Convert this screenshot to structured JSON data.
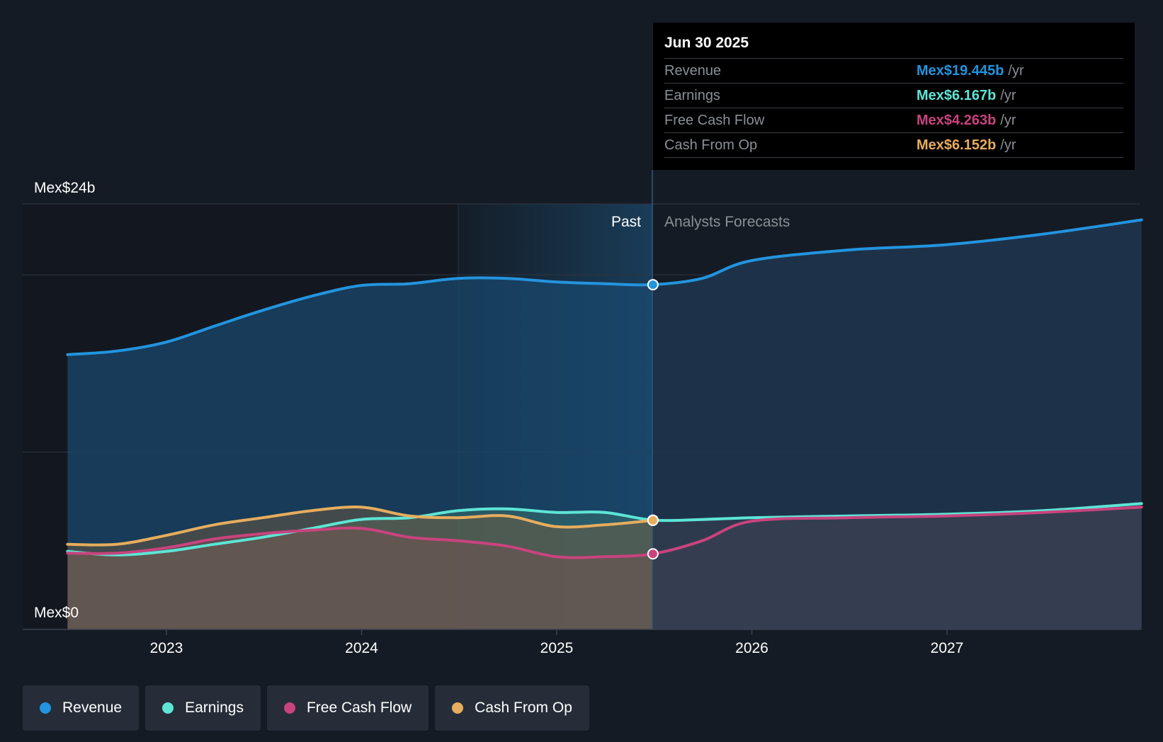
{
  "chart_data": {
    "type": "area",
    "y_axis_labels": {
      "max": "Mex$24b",
      "min": "Mex$0"
    },
    "ylim": [
      0,
      24
    ],
    "x_ticks": [
      "2023",
      "2024",
      "2025",
      "2026",
      "2027"
    ],
    "divider_date": "Jun 30 2025",
    "past_label": "Past",
    "forecast_label": "Analysts Forecasts",
    "series": [
      {
        "name": "Revenue",
        "color": "#2394df",
        "points": [
          [
            "2022-06-30",
            15.5
          ],
          [
            "2022-09-30",
            15.7
          ],
          [
            "2022-12-31",
            16.2
          ],
          [
            "2023-03-31",
            17.1
          ],
          [
            "2023-06-30",
            18.0
          ],
          [
            "2023-09-30",
            18.8
          ],
          [
            "2023-12-31",
            19.4
          ],
          [
            "2024-03-31",
            19.5
          ],
          [
            "2024-06-30",
            19.8
          ],
          [
            "2024-09-30",
            19.8
          ],
          [
            "2024-12-31",
            19.6
          ],
          [
            "2025-03-31",
            19.5
          ],
          [
            "2025-06-30",
            19.445
          ],
          [
            "2025-09-30",
            19.8
          ],
          [
            "2025-12-31",
            20.8
          ],
          [
            "2026-06-30",
            21.4
          ],
          [
            "2026-12-31",
            21.7
          ],
          [
            "2027-06-30",
            22.3
          ],
          [
            "2027-12-31",
            23.1
          ]
        ]
      },
      {
        "name": "Earnings",
        "color": "#5de5d6",
        "points": [
          [
            "2022-06-30",
            4.4
          ],
          [
            "2022-09-30",
            4.2
          ],
          [
            "2022-12-31",
            4.4
          ],
          [
            "2023-03-31",
            4.8
          ],
          [
            "2023-06-30",
            5.2
          ],
          [
            "2023-09-30",
            5.7
          ],
          [
            "2023-12-31",
            6.2
          ],
          [
            "2024-03-31",
            6.3
          ],
          [
            "2024-06-30",
            6.7
          ],
          [
            "2024-09-30",
            6.8
          ],
          [
            "2024-12-31",
            6.6
          ],
          [
            "2025-03-31",
            6.6
          ],
          [
            "2025-06-30",
            6.167
          ],
          [
            "2025-09-30",
            6.2
          ],
          [
            "2025-12-31",
            6.3
          ],
          [
            "2026-06-30",
            6.4
          ],
          [
            "2026-12-31",
            6.5
          ],
          [
            "2027-06-30",
            6.7
          ],
          [
            "2027-12-31",
            7.1
          ]
        ]
      },
      {
        "name": "Free Cash Flow",
        "color": "#c9437e",
        "points": [
          [
            "2022-06-30",
            4.3
          ],
          [
            "2022-09-30",
            4.3
          ],
          [
            "2022-12-31",
            4.6
          ],
          [
            "2023-03-31",
            5.1
          ],
          [
            "2023-06-30",
            5.4
          ],
          [
            "2023-09-30",
            5.6
          ],
          [
            "2023-12-31",
            5.7
          ],
          [
            "2024-03-31",
            5.2
          ],
          [
            "2024-06-30",
            5.0
          ],
          [
            "2024-09-30",
            4.7
          ],
          [
            "2024-12-31",
            4.1
          ],
          [
            "2025-03-31",
            4.1
          ],
          [
            "2025-06-30",
            4.263
          ],
          [
            "2025-09-30",
            5.0
          ],
          [
            "2025-12-31",
            6.1
          ],
          [
            "2026-06-30",
            6.3
          ],
          [
            "2026-12-31",
            6.4
          ],
          [
            "2027-06-30",
            6.6
          ],
          [
            "2027-12-31",
            6.9
          ]
        ]
      },
      {
        "name": "Cash From Op",
        "color": "#e6ad5e",
        "points": [
          [
            "2022-06-30",
            4.8
          ],
          [
            "2022-09-30",
            4.8
          ],
          [
            "2022-12-31",
            5.3
          ],
          [
            "2023-03-31",
            5.9
          ],
          [
            "2023-06-30",
            6.3
          ],
          [
            "2023-09-30",
            6.7
          ],
          [
            "2023-12-31",
            6.9
          ],
          [
            "2024-03-31",
            6.4
          ],
          [
            "2024-06-30",
            6.3
          ],
          [
            "2024-09-30",
            6.4
          ],
          [
            "2024-12-31",
            5.8
          ],
          [
            "2025-03-31",
            5.9
          ],
          [
            "2025-06-30",
            6.152
          ]
        ]
      }
    ]
  },
  "tooltip": {
    "date": "Jun 30 2025",
    "rows": [
      {
        "label": "Revenue",
        "value": "Mex$19.445b",
        "unit": "/yr",
        "color": "#2394df"
      },
      {
        "label": "Earnings",
        "value": "Mex$6.167b",
        "unit": "/yr",
        "color": "#5de5d6"
      },
      {
        "label": "Free Cash Flow",
        "value": "Mex$4.263b",
        "unit": "/yr",
        "color": "#c9437e"
      },
      {
        "label": "Cash From Op",
        "value": "Mex$6.152b",
        "unit": "/yr",
        "color": "#e6ad5e"
      }
    ]
  },
  "legend": [
    {
      "label": "Revenue",
      "color": "#2394df"
    },
    {
      "label": "Earnings",
      "color": "#5de5d6"
    },
    {
      "label": "Free Cash Flow",
      "color": "#c9437e"
    },
    {
      "label": "Cash From Op",
      "color": "#e6ad5e"
    }
  ]
}
